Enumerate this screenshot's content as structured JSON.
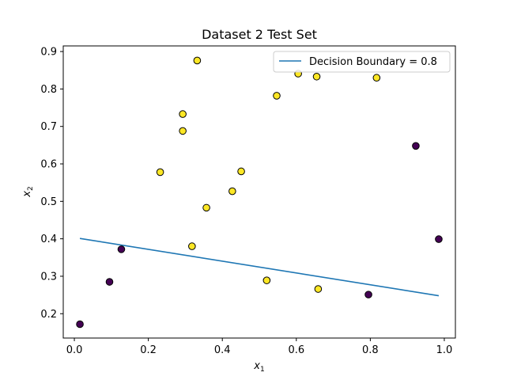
{
  "chart_data": {
    "type": "scatter",
    "title": "Dataset 2 Test Set",
    "xlabel": {
      "base": "x",
      "sub": "1"
    },
    "ylabel": {
      "base": "x",
      "sub": "2"
    },
    "xlim": [
      -0.03,
      1.03
    ],
    "ylim": [
      0.135,
      0.915
    ],
    "xticks": [
      0.0,
      0.2,
      0.4,
      0.6,
      0.8,
      1.0
    ],
    "xtick_labels": [
      "0.0",
      "0.2",
      "0.4",
      "0.6",
      "0.8",
      "1.0"
    ],
    "yticks": [
      0.2,
      0.3,
      0.4,
      0.5,
      0.6,
      0.7,
      0.8,
      0.9
    ],
    "ytick_labels": [
      "0.2",
      "0.3",
      "0.4",
      "0.5",
      "0.6",
      "0.7",
      "0.8",
      "0.9"
    ],
    "grid": false,
    "legend": {
      "position": "top-right",
      "entries": [
        "Decision Boundary = 0.8"
      ]
    },
    "colors": {
      "class_0": "#440154",
      "class_1": "#fde725",
      "line": "#1f77b4"
    },
    "points": [
      {
        "x": 0.015,
        "y": 0.172,
        "class": 0
      },
      {
        "x": 0.095,
        "y": 0.285,
        "class": 0
      },
      {
        "x": 0.127,
        "y": 0.372,
        "class": 0
      },
      {
        "x": 0.232,
        "y": 0.578,
        "class": 1
      },
      {
        "x": 0.293,
        "y": 0.733,
        "class": 1
      },
      {
        "x": 0.293,
        "y": 0.688,
        "class": 1
      },
      {
        "x": 0.318,
        "y": 0.38,
        "class": 1
      },
      {
        "x": 0.332,
        "y": 0.876,
        "class": 1
      },
      {
        "x": 0.357,
        "y": 0.483,
        "class": 1
      },
      {
        "x": 0.427,
        "y": 0.527,
        "class": 1
      },
      {
        "x": 0.451,
        "y": 0.58,
        "class": 1
      },
      {
        "x": 0.52,
        "y": 0.289,
        "class": 1
      },
      {
        "x": 0.547,
        "y": 0.782,
        "class": 1
      },
      {
        "x": 0.605,
        "y": 0.841,
        "class": 1
      },
      {
        "x": 0.655,
        "y": 0.833,
        "class": 1
      },
      {
        "x": 0.659,
        "y": 0.266,
        "class": 1
      },
      {
        "x": 0.795,
        "y": 0.251,
        "class": 0
      },
      {
        "x": 0.817,
        "y": 0.83,
        "class": 1
      },
      {
        "x": 0.923,
        "y": 0.648,
        "class": 0
      },
      {
        "x": 0.985,
        "y": 0.399,
        "class": 0
      }
    ],
    "boundary_line": {
      "name": "Decision Boundary = 0.8",
      "x": [
        0.015,
        0.985
      ],
      "y": [
        0.401,
        0.248
      ]
    }
  }
}
